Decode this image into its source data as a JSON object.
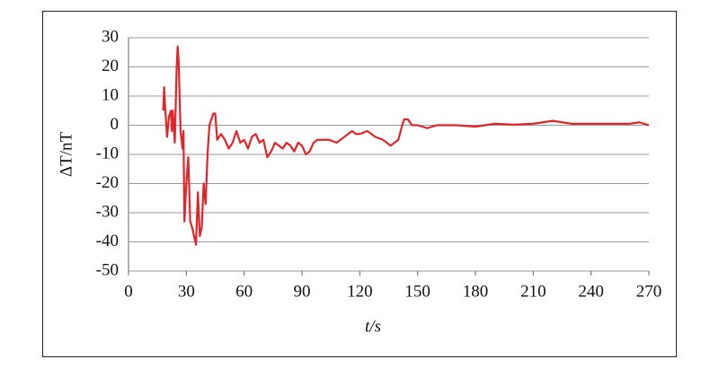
{
  "chart_data": {
    "type": "line",
    "x_label": "t/s",
    "y_label": "ΔT/nT",
    "xlim": [
      0,
      270
    ],
    "xticks": [
      0,
      30,
      60,
      90,
      120,
      150,
      180,
      210,
      240,
      270
    ],
    "ylim": [
      -50,
      30
    ],
    "yticks": [
      -50,
      -40,
      -30,
      -20,
      -10,
      0,
      10,
      20,
      30
    ],
    "grid": true,
    "x": [
      18,
      18.5,
      19,
      20,
      21,
      22,
      22.5,
      23,
      24,
      25,
      25.5,
      26,
      27,
      28,
      28.5,
      29,
      30,
      31,
      32,
      33,
      34,
      35,
      36,
      37,
      38,
      39,
      40,
      41,
      42,
      43,
      44,
      45,
      46,
      48,
      50,
      52,
      54,
      56,
      58,
      60,
      62,
      64,
      66,
      68,
      70,
      72,
      74,
      76,
      78,
      80,
      82,
      84,
      86,
      88,
      90,
      92,
      94,
      96,
      98,
      100,
      104,
      108,
      112,
      116,
      118,
      120,
      124,
      128,
      132,
      136,
      140,
      142,
      143,
      145,
      147,
      150,
      155,
      160,
      170,
      180,
      185,
      190,
      200,
      210,
      220,
      225,
      230,
      240,
      250,
      260,
      265,
      270
    ],
    "series": [
      {
        "color": "#e0262a",
        "values": [
          5,
          13,
          6,
          -4,
          3,
          5,
          -2,
          5,
          -6,
          20,
          27,
          22,
          -2,
          -8,
          -2,
          -33,
          -20,
          -11,
          -33,
          -35,
          -38,
          -41,
          -23,
          -38,
          -35,
          -20,
          -27,
          -10,
          0,
          2,
          4,
          4,
          -5,
          -3,
          -5,
          -8,
          -6,
          -2,
          -6,
          -5,
          -8,
          -4,
          -3,
          -6,
          -5,
          -11,
          -9,
          -6,
          -7,
          -8,
          -6,
          -7,
          -9,
          -6,
          -7,
          -10,
          -9,
          -6,
          -5,
          -5,
          -5,
          -6,
          -4,
          -2,
          -3,
          -3,
          -2,
          -4,
          -5,
          -7,
          -5,
          0,
          2,
          2,
          0,
          0,
          -1,
          0,
          0,
          -0.5,
          0,
          0.5,
          0.2,
          0.5,
          1.5,
          1,
          0.5,
          0.5,
          0.5,
          0.5,
          1,
          0
        ]
      }
    ]
  }
}
